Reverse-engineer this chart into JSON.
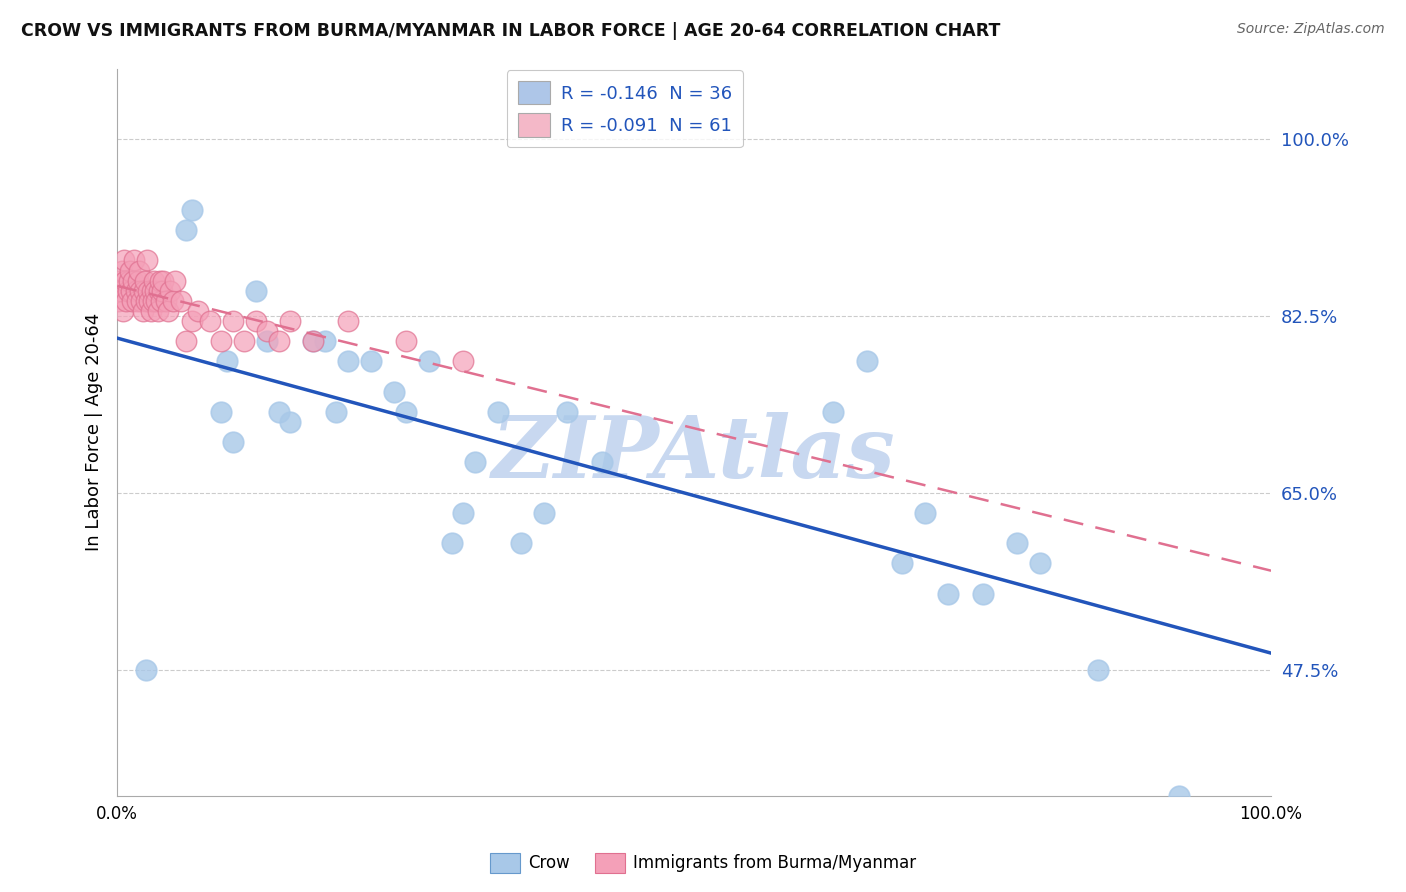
{
  "title": "CROW VS IMMIGRANTS FROM BURMA/MYANMAR IN LABOR FORCE | AGE 20-64 CORRELATION CHART",
  "source": "Source: ZipAtlas.com",
  "ylabel": "In Labor Force | Age 20-64",
  "ytick_labels": [
    "47.5%",
    "65.0%",
    "82.5%",
    "100.0%"
  ],
  "ytick_values": [
    0.475,
    0.65,
    0.825,
    1.0
  ],
  "xlim": [
    0.0,
    1.0
  ],
  "ylim": [
    0.35,
    1.07
  ],
  "legend_entries": [
    {
      "label": "R = -0.146  N = 36",
      "color": "#aec6e8"
    },
    {
      "label": "R = -0.091  N = 61",
      "color": "#f4b8c8"
    }
  ],
  "crow_color": "#a8c8e8",
  "crow_edge": "#6699cc",
  "burma_color": "#f4a0b8",
  "burma_edge": "#e07090",
  "trend_crow_color": "#2255bb",
  "trend_burma_color": "#e07090",
  "watermark": "ZIPAtlas",
  "watermark_color": "#c8d8f0",
  "crow_x": [
    0.025,
    0.06,
    0.065,
    0.09,
    0.095,
    0.1,
    0.12,
    0.13,
    0.14,
    0.15,
    0.17,
    0.18,
    0.19,
    0.2,
    0.22,
    0.24,
    0.25,
    0.27,
    0.29,
    0.3,
    0.31,
    0.33,
    0.35,
    0.37,
    0.39,
    0.42,
    0.62,
    0.65,
    0.68,
    0.7,
    0.72,
    0.75,
    0.78,
    0.8,
    0.85,
    0.92
  ],
  "crow_y": [
    0.475,
    0.91,
    0.93,
    0.73,
    0.78,
    0.7,
    0.85,
    0.8,
    0.73,
    0.72,
    0.8,
    0.8,
    0.73,
    0.78,
    0.78,
    0.75,
    0.73,
    0.78,
    0.6,
    0.63,
    0.68,
    0.73,
    0.6,
    0.63,
    0.73,
    0.68,
    0.73,
    0.78,
    0.58,
    0.63,
    0.55,
    0.55,
    0.6,
    0.58,
    0.475,
    0.35
  ],
  "burma_x": [
    0.001,
    0.002,
    0.003,
    0.004,
    0.005,
    0.006,
    0.007,
    0.008,
    0.009,
    0.01,
    0.011,
    0.012,
    0.013,
    0.014,
    0.015,
    0.016,
    0.017,
    0.018,
    0.019,
    0.02,
    0.021,
    0.022,
    0.023,
    0.024,
    0.025,
    0.026,
    0.027,
    0.028,
    0.029,
    0.03,
    0.031,
    0.032,
    0.033,
    0.034,
    0.035,
    0.036,
    0.037,
    0.038,
    0.039,
    0.04,
    0.042,
    0.044,
    0.046,
    0.048,
    0.05,
    0.055,
    0.06,
    0.065,
    0.07,
    0.08,
    0.09,
    0.1,
    0.11,
    0.12,
    0.13,
    0.14,
    0.15,
    0.17,
    0.2,
    0.25,
    0.3
  ],
  "burma_y": [
    0.84,
    0.86,
    0.85,
    0.87,
    0.83,
    0.88,
    0.86,
    0.84,
    0.85,
    0.86,
    0.87,
    0.85,
    0.84,
    0.86,
    0.88,
    0.85,
    0.84,
    0.86,
    0.87,
    0.85,
    0.84,
    0.83,
    0.85,
    0.86,
    0.84,
    0.88,
    0.85,
    0.84,
    0.83,
    0.85,
    0.84,
    0.86,
    0.85,
    0.84,
    0.83,
    0.85,
    0.86,
    0.84,
    0.85,
    0.86,
    0.84,
    0.83,
    0.85,
    0.84,
    0.86,
    0.84,
    0.8,
    0.82,
    0.83,
    0.82,
    0.8,
    0.82,
    0.8,
    0.82,
    0.81,
    0.8,
    0.82,
    0.8,
    0.82,
    0.8,
    0.78
  ],
  "background_color": "#ffffff",
  "grid_color": "#cccccc"
}
